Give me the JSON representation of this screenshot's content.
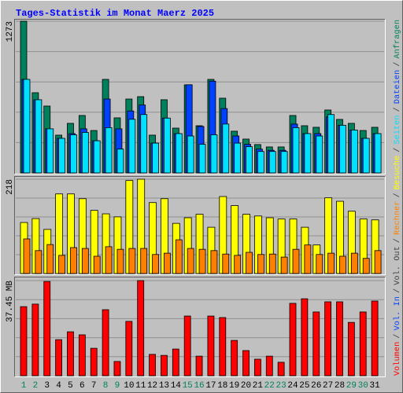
{
  "title": "Tages-Statistik im Monat Maerz 2025",
  "legend_separator": "/",
  "chart_data": [
    {
      "type": "bar",
      "ylim": [
        0,
        1273
      ],
      "yticks": [
        1273
      ],
      "series": [
        {
          "name": "Anfragen",
          "color": "#00805c",
          "values": [
            1273,
            673,
            561,
            317,
            416,
            482,
            356,
            785,
            462,
            620,
            640,
            317,
            614,
            376,
            739,
            396,
            785,
            627,
            350,
            284,
            238,
            218,
            218,
            482,
            396,
            383,
            528,
            449,
            416,
            356,
            383
          ]
        },
        {
          "name": "Dateien",
          "color": "#0040ff",
          "values": [
            785,
            614,
            370,
            290,
            330,
            370,
            270,
            620,
            370,
            520,
            570,
            250,
            460,
            330,
            740,
            390,
            770,
            540,
            310,
            240,
            200,
            190,
            190,
            410,
            330,
            330,
            470,
            400,
            360,
            290,
            330
          ]
        },
        {
          "name": "Seiten",
          "color": "#00e0ff",
          "values": [
            785,
            614,
            370,
            290,
            320,
            340,
            270,
            380,
            200,
            450,
            490,
            250,
            460,
            330,
            310,
            240,
            320,
            410,
            250,
            220,
            180,
            180,
            180,
            380,
            330,
            310,
            490,
            400,
            360,
            290,
            330
          ]
        }
      ]
    },
    {
      "type": "bar",
      "ylim": [
        0,
        218
      ],
      "yticks": [
        218
      ],
      "series": [
        {
          "name": "Besuche",
          "color": "#ffff00",
          "values": [
            118,
            127,
            102,
            184,
            184,
            173,
            146,
            138,
            131,
            215,
            218,
            164,
            173,
            116,
            129,
            137,
            107,
            178,
            157,
            137,
            133,
            129,
            126,
            126,
            107,
            66,
            175,
            167,
            144,
            126,
            124
          ]
        },
        {
          "name": "Rechner",
          "color": "#ff8000",
          "values": [
            80,
            53,
            67,
            42,
            60,
            58,
            40,
            62,
            56,
            58,
            58,
            44,
            47,
            78,
            58,
            56,
            53,
            45,
            42,
            49,
            44,
            45,
            38,
            56,
            66,
            44,
            47,
            40,
            47,
            35,
            53
          ]
        }
      ]
    },
    {
      "type": "bar",
      "ylim": [
        0,
        37.45
      ],
      "yticks": [
        {
          "value": 37.45,
          "label": "37.45 MB"
        }
      ],
      "categories": [
        "1",
        "2",
        "3",
        "4",
        "5",
        "6",
        "7",
        "8",
        "9",
        "10",
        "11",
        "12",
        "13",
        "14",
        "15",
        "16",
        "17",
        "18",
        "19",
        "20",
        "21",
        "22",
        "23",
        "24",
        "25",
        "26",
        "27",
        "28",
        "29",
        "30",
        "31"
      ],
      "category_color": "#000000",
      "highlight_color": "#00805c",
      "highlight_indices": [
        0,
        1,
        7,
        8,
        14,
        15,
        21,
        22,
        28,
        29
      ],
      "series": [
        {
          "name": "Volumen",
          "color": "#ff0000",
          "values": [
            27.2,
            28.2,
            37.1,
            14.2,
            17.3,
            16.1,
            10.8,
            26.0,
            5.6,
            21.4,
            37.45,
            8.4,
            8.0,
            10.5,
            23.5,
            7.7,
            23.5,
            22.9,
            13.9,
            9.9,
            6.5,
            7.7,
            5.3,
            28.5,
            30.3,
            25.1,
            29.1,
            29.1,
            21.0,
            25.1,
            29.4
          ]
        }
      ],
      "legend_extra": [
        {
          "name": "Vol. In",
          "color": "#0040ff"
        },
        {
          "name": "Vol. Out",
          "color": "#404040"
        }
      ]
    }
  ]
}
